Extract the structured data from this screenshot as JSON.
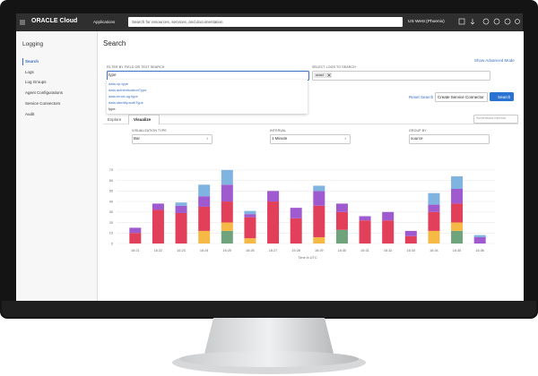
{
  "nav": {
    "brand": "ORACLE Cloud",
    "applications": "Applications",
    "search_placeholder": "Search for resources, services, and documentation",
    "region": "US West (Phoenix)"
  },
  "sidebar": {
    "title": "Logging",
    "links": [
      "Search",
      "Logs",
      "Log Groups",
      "Agent Configurations",
      "Service Connectors",
      "Audit"
    ]
  },
  "search": {
    "title": "Search",
    "advanced": "Show Advanced Mode",
    "filter_label": "FILTER BY FIELD OR TEXT SEARCH",
    "filter_value": "type",
    "suggestions": [
      "data.op.type",
      "data.authenticationType",
      "data.errorLog.type",
      "data.identity.authType",
      "type"
    ],
    "logs_label": "SELECT LOGS TO SEARCH",
    "log_chip": "oracl",
    "reset": "Reset Search",
    "connector": "Create Service Connector",
    "search_button": "Search"
  },
  "tabs": [
    "Explore",
    "Visualize"
  ],
  "interval_select": "Screenshot Interval",
  "controls": [
    {
      "label": "VISUALIZATION TYPE",
      "value": "Bar"
    },
    {
      "label": "INTERVAL",
      "value": "1 Minute"
    },
    {
      "label": "GROUP BY",
      "value": "source"
    }
  ],
  "chart_data": {
    "type": "bar",
    "stacked": true,
    "x_label": "Time in UTC",
    "categories": [
      "16:21",
      "16:22",
      "16:23",
      "16:24",
      "16:25",
      "16:26",
      "16:27",
      "16:28",
      "16:29",
      "16:30",
      "16:31",
      "16:32",
      "16:33",
      "16:34",
      "16:35",
      "16:36"
    ],
    "series": [
      {
        "color": "#6fa37c",
        "values": [
          0,
          0,
          0,
          0,
          12,
          0,
          0,
          0,
          0,
          13,
          0,
          0,
          0,
          0,
          12,
          0
        ]
      },
      {
        "color": "#f6b945",
        "values": [
          0,
          0,
          0,
          12,
          8,
          5,
          0,
          0,
          6,
          0,
          0,
          0,
          0,
          12,
          8,
          0
        ]
      },
      {
        "color": "#e2405a",
        "values": [
          10,
          32,
          29,
          23,
          20,
          20,
          40,
          24,
          30,
          17,
          22,
          22,
          7,
          18,
          18,
          0
        ]
      },
      {
        "color": "#a05ad0",
        "values": [
          5,
          6,
          7,
          10,
          16,
          3,
          10,
          10,
          14,
          8,
          4,
          8,
          5,
          7,
          14,
          6
        ]
      },
      {
        "color": "#7fb3e0",
        "values": [
          0,
          0,
          3,
          11,
          14,
          3,
          0,
          0,
          5,
          0,
          0,
          0,
          0,
          11,
          12,
          2
        ]
      }
    ],
    "ylim": [
      0,
      75
    ],
    "yticks": [
      0,
      10,
      20,
      30,
      40,
      50,
      60,
      70
    ],
    "grid": true
  }
}
